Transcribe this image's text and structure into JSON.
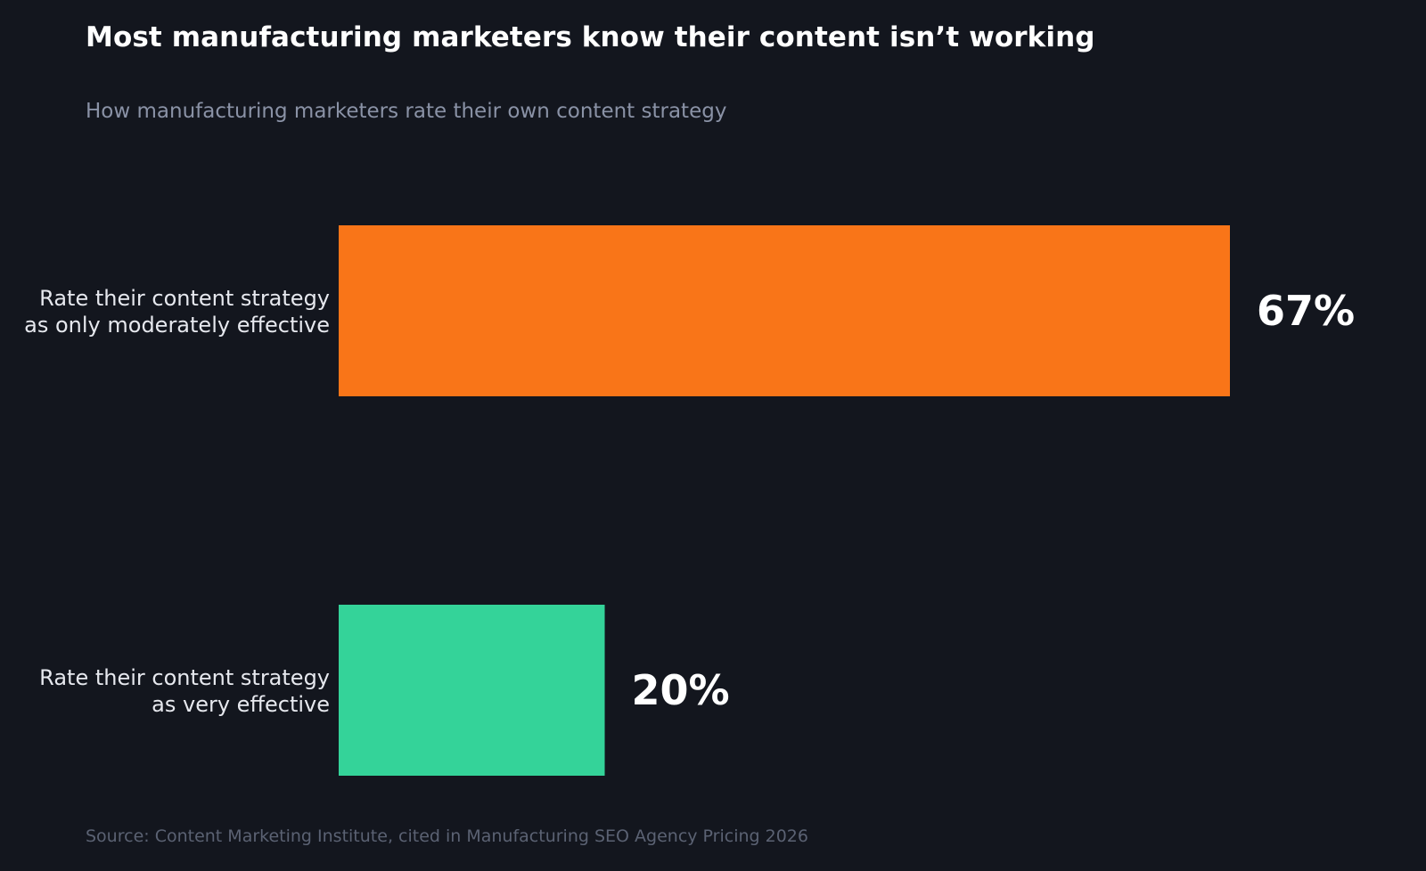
{
  "chart_data": {
    "type": "bar",
    "orientation": "horizontal",
    "title": "Most manufacturing marketers know their content isn’t working",
    "subtitle": "How manufacturing marketers rate their own content strategy",
    "source": "Source: Content Marketing Institute, cited in Manufacturing SEO Agency Pricing 2026",
    "categories": [
      [
        "Rate their content strategy",
        "as only moderately effective"
      ],
      [
        "Rate their content strategy",
        "as very effective"
      ]
    ],
    "values": [
      67,
      20
    ],
    "value_labels": [
      "67%",
      "20%"
    ],
    "colors": [
      "#f97518",
      "#34d399"
    ],
    "xlim": [
      0,
      67
    ],
    "grid": false,
    "legend": "none"
  }
}
